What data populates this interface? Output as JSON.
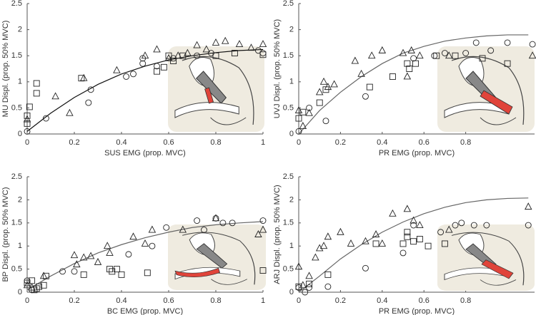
{
  "chart_data": [
    {
      "type": "scatter",
      "xlabel": "SUS EMG (prop. MVC)",
      "ylabel": "MU Displ. (prop. 50% MVC)",
      "xlim": [
        0,
        1
      ],
      "ylim": [
        0,
        2.5
      ],
      "xticks": [
        0,
        0.2,
        0.4,
        0.6,
        0.8,
        1
      ],
      "yticks": [
        0,
        0.5,
        1,
        1.5,
        2,
        2.5
      ],
      "series": [
        {
          "marker": "triangle",
          "color": "#222",
          "x": [
            0,
            0.12,
            0.18,
            0.24,
            0.38,
            0.5,
            0.55,
            0.6,
            0.64,
            0.68,
            0.72,
            0.76,
            0.8,
            0.84,
            0.9,
            0.95,
            1
          ],
          "values": [
            0.28,
            0.72,
            0.4,
            1.07,
            1.22,
            1.5,
            1.62,
            1.45,
            1.5,
            1.55,
            1.7,
            1.62,
            1.75,
            1.78,
            1.72,
            1.65,
            1.72
          ]
        },
        {
          "marker": "circle",
          "color": "#222",
          "x": [
            0,
            0.08,
            0.26,
            0.27,
            0.42,
            0.45,
            0.49,
            0.49,
            0.55,
            0.62,
            0.72,
            0.78,
            0.98,
            1
          ],
          "values": [
            0.05,
            0.3,
            0.6,
            0.85,
            1.1,
            1.15,
            1.35,
            1.45,
            1.3,
            1.45,
            1.5,
            1.55,
            1.6,
            1.55
          ]
        },
        {
          "marker": "square",
          "color": "#222",
          "x": [
            0,
            0,
            0.01,
            0.04,
            0.04,
            0.23,
            0.55,
            0.58,
            0.6,
            0.62,
            0.66,
            0.8,
            0.88,
            1
          ],
          "values": [
            0.2,
            0.35,
            0.52,
            0.78,
            0.97,
            1.07,
            1.2,
            1.28,
            1.5,
            1.4,
            1.5,
            1.5,
            1.55,
            1.52
          ]
        }
      ],
      "fit": {
        "color": "#111",
        "x": [
          0,
          0.1,
          0.2,
          0.3,
          0.4,
          0.5,
          0.6,
          0.7,
          0.8,
          0.9,
          1
        ],
        "values": [
          0.05,
          0.4,
          0.7,
          0.95,
          1.15,
          1.3,
          1.42,
          1.5,
          1.56,
          1.6,
          1.62
        ]
      }
    },
    {
      "type": "scatter",
      "xlabel": "PR EMG (prop. MVC)",
      "ylabel": "UVJ Displ. (prop. 50% MVC)",
      "xlim": [
        0,
        1.13
      ],
      "ylim": [
        0,
        2.5
      ],
      "xticks": [
        0,
        0.2,
        0.4,
        0.6,
        0.8
      ],
      "yticks": [
        0,
        0.5,
        1,
        1.5,
        2,
        2.5
      ],
      "series": [
        {
          "marker": "triangle",
          "color": "#222",
          "x": [
            0,
            0.02,
            0.05,
            0.1,
            0.12,
            0.14,
            0.17,
            0.27,
            0.3,
            0.35,
            0.4,
            0.5,
            0.52,
            0.54,
            0.58,
            0.72,
            1.12
          ],
          "values": [
            0.45,
            0.15,
            0.4,
            0.8,
            1.0,
            0.9,
            0.95,
            1.4,
            1.15,
            1.5,
            1.6,
            1.55,
            1.1,
            1.6,
            1.5,
            1.5,
            1.5
          ]
        },
        {
          "marker": "circle",
          "color": "#222",
          "x": [
            0,
            0.05,
            0.13,
            0.32,
            0.55,
            0.65,
            0.7,
            0.8,
            0.85,
            0.92,
            1.0,
            1.12
          ],
          "values": [
            0.05,
            0.5,
            0.25,
            0.72,
            1.45,
            1.5,
            1.55,
            1.55,
            1.75,
            1.6,
            1.75,
            1.72
          ]
        },
        {
          "marker": "square",
          "color": "#222",
          "x": [
            0,
            0.02,
            0.1,
            0.13,
            0.34,
            0.45,
            0.52,
            0.53,
            0.56,
            0.66,
            0.75,
            0.88,
            1.0
          ],
          "values": [
            0.3,
            0.42,
            0.6,
            0.85,
            0.9,
            1.1,
            1.35,
            1.25,
            1.35,
            1.5,
            1.5,
            1.45,
            1.35
          ]
        }
      ],
      "fit": {
        "color": "#666",
        "x": [
          0,
          0.1,
          0.2,
          0.3,
          0.4,
          0.5,
          0.6,
          0.7,
          0.8,
          0.9,
          1.0,
          1.1
        ],
        "values": [
          0,
          0.45,
          0.8,
          1.1,
          1.35,
          1.55,
          1.68,
          1.78,
          1.84,
          1.88,
          1.9,
          1.9
        ]
      }
    },
    {
      "type": "scatter",
      "xlabel": "BC EMG (prop. MVC)",
      "ylabel": "BP Displ. (prop. 50% MVC)",
      "xlim": [
        0,
        1
      ],
      "ylim": [
        0,
        2.5
      ],
      "xticks": [
        0,
        0.2,
        0.4,
        0.6,
        0.8,
        1
      ],
      "yticks": [
        0,
        0.5,
        1,
        1.5,
        2,
        2.5
      ],
      "series": [
        {
          "marker": "triangle",
          "color": "#222",
          "x": [
            0,
            0.02,
            0.07,
            0.2,
            0.21,
            0.24,
            0.27,
            0.3,
            0.34,
            0.35,
            0.45,
            0.5,
            0.53,
            0.66,
            0.8,
            0.98,
            1
          ],
          "values": [
            0.15,
            0.1,
            0.35,
            0.8,
            0.6,
            0.75,
            0.78,
            0.65,
            1.0,
            0.85,
            1.2,
            1.05,
            1.35,
            1.35,
            1.6,
            1.25,
            1.35
          ]
        },
        {
          "marker": "circle",
          "color": "#222",
          "x": [
            0,
            0.02,
            0.15,
            0.2,
            0.43,
            0.53,
            0.59,
            0.72,
            0.75,
            0.8,
            0.83,
            0.87,
            1
          ],
          "values": [
            0.25,
            0.05,
            0.45,
            0.45,
            0.82,
            1.0,
            1.4,
            1.55,
            1.35,
            1.6,
            1.5,
            1.5,
            1.55
          ]
        },
        {
          "marker": "square",
          "color": "#222",
          "x": [
            0,
            0.02,
            0.03,
            0.04,
            0.05,
            0.07,
            0.08,
            0.24,
            0.35,
            0.36,
            0.38,
            0.4,
            0.51,
            1
          ],
          "values": [
            0.2,
            0.25,
            0.05,
            0.08,
            0.12,
            0.15,
            0.35,
            0.38,
            0.5,
            0.45,
            0.5,
            0.38,
            0.42,
            0.47
          ]
        }
      ],
      "fit": {
        "color": "#666",
        "x": [
          0,
          0.1,
          0.2,
          0.3,
          0.4,
          0.5,
          0.6,
          0.7,
          0.8,
          0.9,
          1
        ],
        "values": [
          0.05,
          0.35,
          0.62,
          0.85,
          1.03,
          1.18,
          1.3,
          1.4,
          1.46,
          1.5,
          1.53
        ]
      }
    },
    {
      "type": "scatter",
      "xlabel": "PR EMG (prop. MVC)",
      "ylabel": "ARJ Displ. (prop. 50% MVC)",
      "xlim": [
        0,
        1.13
      ],
      "ylim": [
        0,
        2.5
      ],
      "xticks": [
        0,
        0.2,
        0.4,
        0.6,
        0.8
      ],
      "yticks": [
        0,
        0.5,
        1,
        1.5,
        2,
        2.5
      ],
      "series": [
        {
          "marker": "triangle",
          "color": "#222",
          "x": [
            0,
            0.02,
            0.05,
            0.08,
            0.1,
            0.12,
            0.14,
            0.2,
            0.25,
            0.32,
            0.37,
            0.4,
            0.45,
            0.52,
            0.55,
            0.58,
            0.72,
            1.1
          ],
          "values": [
            0.55,
            0.15,
            0.35,
            0.75,
            0.95,
            1.0,
            1.2,
            1.3,
            1.05,
            1.1,
            1.25,
            1.05,
            1.7,
            1.8,
            1.55,
            1.45,
            1.35,
            1.85
          ]
        },
        {
          "marker": "circle",
          "color": "#222",
          "x": [
            0,
            0.03,
            0.05,
            0.14,
            0.32,
            0.5,
            0.55,
            0.68,
            0.75,
            0.78,
            0.84,
            0.9,
            1.1
          ],
          "values": [
            0.1,
            0.0,
            0.1,
            0.12,
            0.52,
            0.85,
            1.45,
            1.3,
            1.45,
            1.5,
            1.45,
            1.45,
            1.45
          ]
        },
        {
          "marker": "square",
          "color": "#222",
          "x": [
            0,
            0.05,
            0.14,
            0.37,
            0.5,
            0.52,
            0.52,
            0.55,
            0.58,
            0.62,
            0.7
          ],
          "values": [
            0.12,
            0.18,
            0.38,
            1.05,
            1.05,
            1.2,
            1.3,
            1.1,
            1.15,
            1.0,
            1.05
          ]
        }
      ],
      "fit": {
        "color": "#666",
        "x": [
          0,
          0.1,
          0.2,
          0.3,
          0.4,
          0.5,
          0.6,
          0.7,
          0.8,
          0.9,
          1.0,
          1.1
        ],
        "values": [
          0,
          0.35,
          0.72,
          1.03,
          1.3,
          1.52,
          1.7,
          1.84,
          1.94,
          2.0,
          2.03,
          2.04
        ]
      }
    }
  ]
}
